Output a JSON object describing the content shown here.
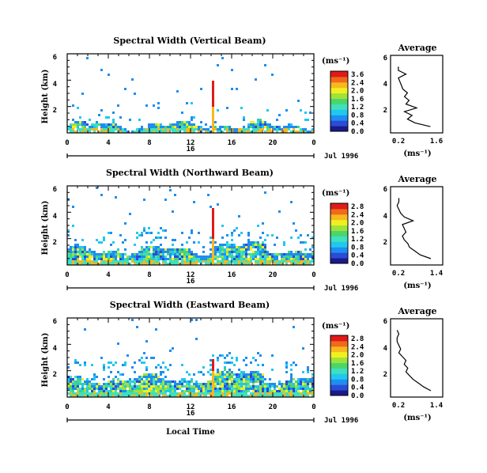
{
  "colors": [
    "#1a1a8c",
    "#2a4cd6",
    "#1e8ef0",
    "#20c8f0",
    "#3ee0c0",
    "#4ad66a",
    "#9ee23a",
    "#f0f020",
    "#f8b81e",
    "#f06a1a",
    "#e01a1a"
  ],
  "shared": {
    "height_label": "Height (km)",
    "y_ticks": [
      "6",
      "4",
      "2"
    ],
    "x_ticks": [
      "0",
      "4",
      "8",
      "12",
      "16",
      "20",
      "0"
    ],
    "date_ticks": [
      "16"
    ],
    "date_label": "Jul 1996",
    "unit_label": "(ms⁻¹)",
    "avg_title": "Average",
    "avg_xlabel": "(ms⁻¹)",
    "avg_yticks": [
      "6",
      "4",
      "2"
    ],
    "local_time": "Local Time"
  },
  "chart_data": [
    {
      "type": "heatmap",
      "title": "Spectral Width (Vertical Beam)",
      "x_range_hours": [
        0,
        24
      ],
      "y_range_km": [
        0,
        6.2
      ],
      "colorbar_ticks": [
        "3.6",
        "2.4",
        "2.0",
        "1.6",
        "1.2",
        "0.8",
        "0.4",
        "0.0"
      ],
      "colorbar_range": [
        0,
        3.6
      ],
      "avg_xticks": [
        "0.2",
        "1.6"
      ],
      "avg_xlim": [
        0.2,
        1.6
      ],
      "avg_profile": {
        "height": [
          0.5,
          0.8,
          1.1,
          1.4,
          1.7,
          2.0,
          2.3,
          2.6,
          2.9,
          3.2,
          3.5,
          3.8,
          4.1,
          4.4,
          4.7,
          5.0,
          5.3
        ],
        "width": [
          1.35,
          0.85,
          0.6,
          0.75,
          0.5,
          0.9,
          0.55,
          0.65,
          0.5,
          0.6,
          0.45,
          0.4,
          0.35,
          0.3,
          0.55,
          0.3,
          0.3
        ]
      }
    },
    {
      "type": "heatmap",
      "title": "Spectral Width (Northward Beam)",
      "x_range_hours": [
        0,
        24
      ],
      "y_range_km": [
        0,
        6.2
      ],
      "colorbar_ticks": [
        "2.8",
        "2.4",
        "2.0",
        "1.6",
        "1.2",
        "0.8",
        "0.4",
        "0.0"
      ],
      "colorbar_range": [
        0,
        2.8
      ],
      "avg_xticks": [
        "0.2",
        "1.4"
      ],
      "avg_xlim": [
        0.2,
        1.4
      ],
      "avg_profile": {
        "height": [
          0.5,
          0.8,
          1.1,
          1.4,
          1.7,
          2.0,
          2.3,
          2.6,
          2.9,
          3.2,
          3.5,
          3.8,
          4.1,
          4.4,
          4.7,
          5.0,
          5.3
        ],
        "width": [
          1.2,
          0.9,
          0.75,
          0.6,
          0.55,
          0.45,
          0.4,
          0.5,
          0.45,
          0.4,
          0.7,
          0.45,
          0.35,
          0.3,
          0.25,
          0.3,
          0.3
        ]
      }
    },
    {
      "type": "heatmap",
      "title": "Spectral Width (Eastward Beam)",
      "x_range_hours": [
        0,
        24
      ],
      "y_range_km": [
        0,
        6.2
      ],
      "colorbar_ticks": [
        "2.8",
        "2.4",
        "2.0",
        "1.6",
        "1.2",
        "0.8",
        "0.4",
        "0.0"
      ],
      "colorbar_range": [
        0,
        2.8
      ],
      "avg_xticks": [
        "0.2",
        "1.4"
      ],
      "avg_xlim": [
        0.2,
        1.4
      ],
      "avg_profile": {
        "height": [
          0.5,
          0.8,
          1.1,
          1.4,
          1.7,
          2.0,
          2.3,
          2.6,
          2.9,
          3.2,
          3.5,
          3.8,
          4.1,
          4.4,
          4.7,
          5.0,
          5.3
        ],
        "width": [
          1.2,
          1.0,
          0.85,
          0.7,
          0.6,
          0.5,
          0.55,
          0.45,
          0.5,
          0.4,
          0.3,
          0.35,
          0.3,
          0.25,
          0.25,
          0.3,
          0.25
        ]
      }
    }
  ]
}
